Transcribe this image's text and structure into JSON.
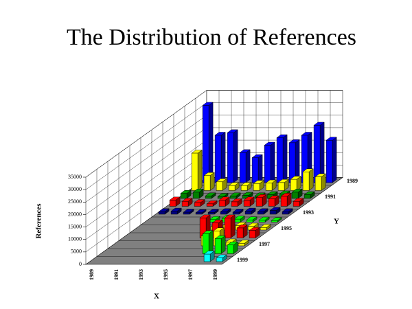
{
  "chart_data": {
    "type": "bar3d",
    "title": "The Distribution of References",
    "xlabel": "X",
    "ylabel": "References",
    "series_axis_label": "Y",
    "categories": [
      "1989",
      null,
      "1991",
      null,
      "1993",
      null,
      "1995",
      null,
      "1997",
      null,
      "1999"
    ],
    "ylim": [
      0,
      35000
    ],
    "yticks": [
      0,
      5000,
      10000,
      15000,
      20000,
      25000,
      30000,
      35000
    ],
    "grid": true,
    "series": [
      {
        "name": "1989",
        "color": "#0000ff",
        "values": [
          31000,
          19000,
          20000,
          12000,
          10000,
          15000,
          18000,
          16000,
          19000,
          23000,
          17000
        ]
      },
      {
        "name": null,
        "color": "#ffff00",
        "values": [
          15000,
          6000,
          3500,
          2000,
          2000,
          2800,
          3000,
          3200,
          4500,
          7500,
          5500
        ]
      },
      {
        "name": "1991",
        "color": "#008000",
        "values": [
          2000,
          2500,
          1000,
          800,
          1000,
          1200,
          1000,
          1500,
          1800,
          2500,
          1500
        ]
      },
      {
        "name": null,
        "color": "#ff0000",
        "values": [
          2500,
          2000,
          1500,
          1000,
          2500,
          1800,
          2500,
          3500,
          3000,
          4000,
          2000
        ]
      },
      {
        "name": "1993",
        "color": "#000080",
        "values": [
          1000,
          1200,
          800,
          600,
          700,
          1000,
          800,
          1200,
          1000,
          1500,
          1000
        ]
      },
      {
        "name": null,
        "color": "#00ff00",
        "values": [
          null,
          null,
          null,
          null,
          null,
          1000,
          1500,
          1200,
          900,
          800,
          600
        ]
      },
      {
        "name": "1995",
        "color": "#ffff00",
        "values": [
          null,
          null,
          null,
          null,
          null,
          null,
          1500,
          2000,
          1800,
          1500,
          1000
        ]
      },
      {
        "name": null,
        "color": "#ff0000",
        "values": [
          null,
          null,
          null,
          null,
          null,
          null,
          8000,
          6000,
          8000,
          4000,
          3000
        ]
      },
      {
        "name": "1997",
        "color": "#ffff00",
        "values": [
          null,
          null,
          null,
          null,
          null,
          null,
          null,
          4000,
          6000,
          1500,
          1000
        ]
      },
      {
        "name": null,
        "color": "#00ff00",
        "values": [
          null,
          null,
          null,
          null,
          null,
          null,
          null,
          null,
          8000,
          6000,
          3500
        ]
      },
      {
        "name": "1999",
        "color": "#00ffff",
        "values": [
          null,
          null,
          null,
          null,
          null,
          null,
          null,
          null,
          null,
          3000,
          1500
        ]
      }
    ]
  }
}
